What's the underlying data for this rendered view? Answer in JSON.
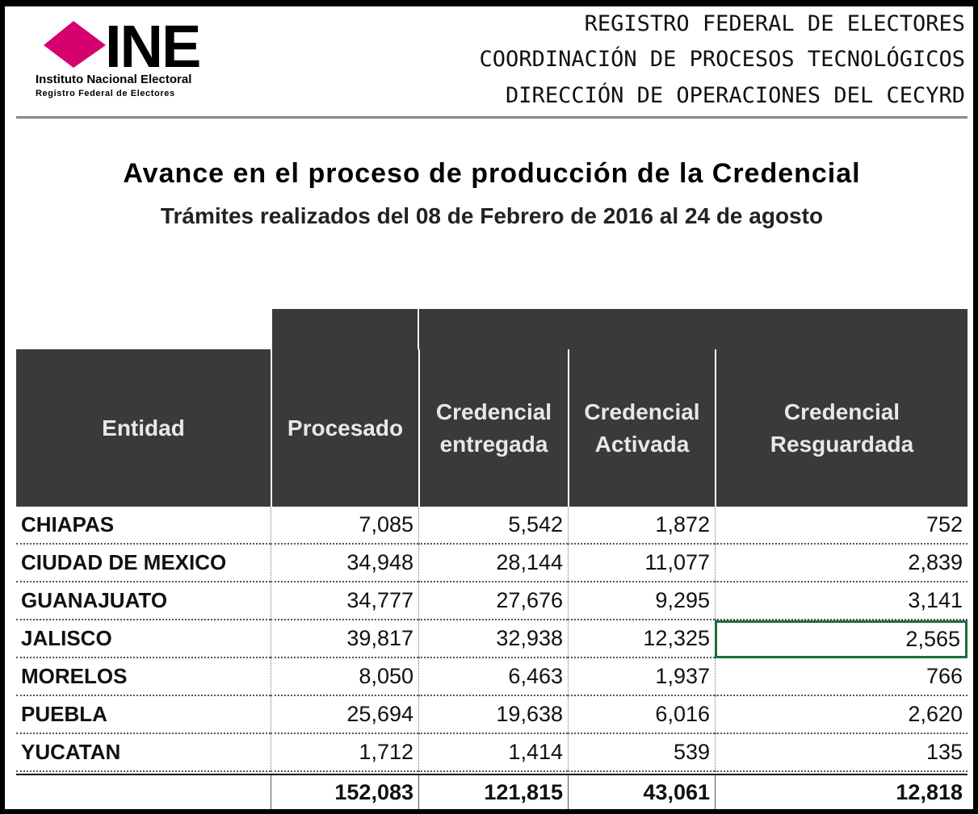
{
  "header": {
    "logo": {
      "acronym": "INE",
      "name": "Instituto Nacional Electoral",
      "subname": "Registro Federal de Electores"
    },
    "lines": [
      "REGISTRO FEDERAL DE ELECTORES",
      "COORDINACIÓN DE PROCESOS TECNOLÓGICOS",
      "DIRECCIÓN DE OPERACIONES DEL CECYRD"
    ]
  },
  "title": "Avance en el proceso de producción de la Credencial",
  "subtitle": "Trámites realizados del 08 de Febrero de 2016 al 24 de agosto",
  "table": {
    "columns": [
      "Entidad",
      "Procesado",
      "Credencial entregada",
      "Credencial Activada",
      "Credencial Resguardada"
    ],
    "rows": [
      [
        "CHIAPAS",
        "7,085",
        "5,542",
        "1,872",
        "752"
      ],
      [
        "CIUDAD DE MEXICO",
        "34,948",
        "28,144",
        "11,077",
        "2,839"
      ],
      [
        "GUANAJUATO",
        "34,777",
        "27,676",
        "9,295",
        "3,141"
      ],
      [
        "JALISCO",
        "39,817",
        "32,938",
        "12,325",
        "2,565"
      ],
      [
        "MORELOS",
        "8,050",
        "6,463",
        "1,937",
        "766"
      ],
      [
        "PUEBLA",
        "25,694",
        "19,638",
        "6,016",
        "2,620"
      ],
      [
        "YUCATAN",
        "1,712",
        "1,414",
        "539",
        "135"
      ]
    ],
    "totals": [
      "152,083",
      "121,815",
      "43,061",
      "12,818"
    ]
  }
}
